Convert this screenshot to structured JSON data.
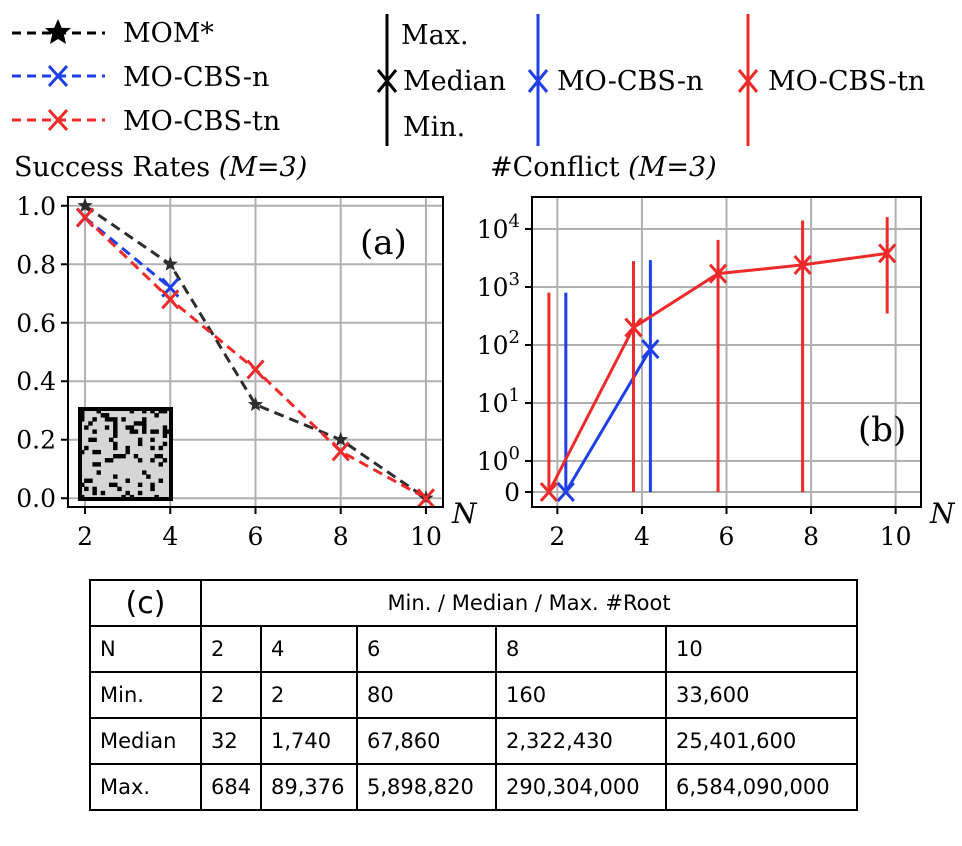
{
  "legend_lines": {
    "items": [
      {
        "label": "MOM*",
        "color": "#000000",
        "marker": "star"
      },
      {
        "label": "MO-CBS-n",
        "color": "#1f3fe8",
        "marker": "x"
      },
      {
        "label": "MO-CBS-tn",
        "color": "#ee2a2a",
        "marker": "x"
      }
    ]
  },
  "legend_errorbars": {
    "max_label": "Max.",
    "median_label": "Median",
    "min_label": "Min.",
    "items": [
      {
        "label": "MO-CBS-n",
        "color": "#1f3fe8"
      },
      {
        "label": "MO-CBS-tn",
        "color": "#ee2a2a"
      }
    ]
  },
  "chart_data": [
    {
      "id": "a",
      "type": "line",
      "title": "Success Rates",
      "title_param": "(M=3)",
      "panel_label": "(a)",
      "xlabel": "N",
      "ylabel": "",
      "xlim": [
        1.6,
        10.4
      ],
      "ylim": [
        -0.03,
        1.03
      ],
      "xticks": [
        2,
        4,
        6,
        8,
        10
      ],
      "yticks": [
        0.0,
        0.2,
        0.4,
        0.6,
        0.8,
        1.0
      ],
      "ytick_labels": [
        "0.0",
        "0.2",
        "0.4",
        "0.6",
        "0.8",
        "1.0"
      ],
      "grid": true,
      "inset_icon": "random-map-thumbnail",
      "series": [
        {
          "name": "MOM*",
          "color": "#2d2d2d",
          "marker": "star",
          "x": [
            2,
            4,
            6,
            8,
            10
          ],
          "values": [
            1.0,
            0.8,
            0.32,
            0.2,
            0.0
          ]
        },
        {
          "name": "MO-CBS-n",
          "color": "#1f3fe8",
          "marker": "x",
          "x": [
            2,
            4
          ],
          "values": [
            0.96,
            0.72
          ]
        },
        {
          "name": "MO-CBS-tn",
          "color": "#ee2a2a",
          "marker": "x",
          "x": [
            2,
            4,
            6,
            8,
            10
          ],
          "values": [
            0.96,
            0.68,
            0.44,
            0.16,
            0.0
          ]
        }
      ]
    },
    {
      "id": "b",
      "type": "line",
      "title": "#Conflict",
      "title_param": "(M=3)",
      "panel_label": "(b)",
      "xlabel": "N",
      "ylabel": "",
      "yscale": "symlog",
      "xlim": [
        1.4,
        10.6
      ],
      "xticks": [
        2,
        4,
        6,
        8,
        10
      ],
      "ytick_values": [
        0,
        1,
        10,
        100,
        1000,
        10000
      ],
      "ytick_labels": [
        "0",
        "10^0",
        "10^1",
        "10^2",
        "10^3",
        "10^4"
      ],
      "grid": true,
      "series": [
        {
          "name": "MO-CBS-n",
          "color": "#1f3fe8",
          "marker": "x",
          "x": [
            2,
            4
          ],
          "x_offset": 0.2,
          "median": [
            0,
            85
          ],
          "min": [
            0,
            0
          ],
          "max": [
            800,
            2900
          ]
        },
        {
          "name": "MO-CBS-tn",
          "color": "#ee2a2a",
          "marker": "x",
          "x": [
            2,
            4,
            6,
            8,
            10
          ],
          "x_offset": -0.2,
          "median": [
            0,
            200,
            1700,
            2400,
            3800
          ],
          "min": [
            0,
            0,
            0,
            0,
            350
          ],
          "max": [
            800,
            2800,
            6500,
            14000,
            16000
          ]
        }
      ]
    }
  ],
  "table": {
    "caption": "(c)",
    "header": "Min. / Median / Max. #Root",
    "rows": [
      {
        "label": "N",
        "values": [
          "2",
          "4",
          "6",
          "8",
          "10"
        ]
      },
      {
        "label": "Min.",
        "values": [
          "2",
          "2",
          "80",
          "160",
          "33,600"
        ]
      },
      {
        "label": "Median",
        "values": [
          "32",
          "1,740",
          "67,860",
          "2,322,430",
          "25,401,600"
        ]
      },
      {
        "label": "Max.",
        "values": [
          "684",
          "89,376",
          "5,898,820",
          "290,304,000",
          "6,584,090,000"
        ]
      }
    ]
  }
}
